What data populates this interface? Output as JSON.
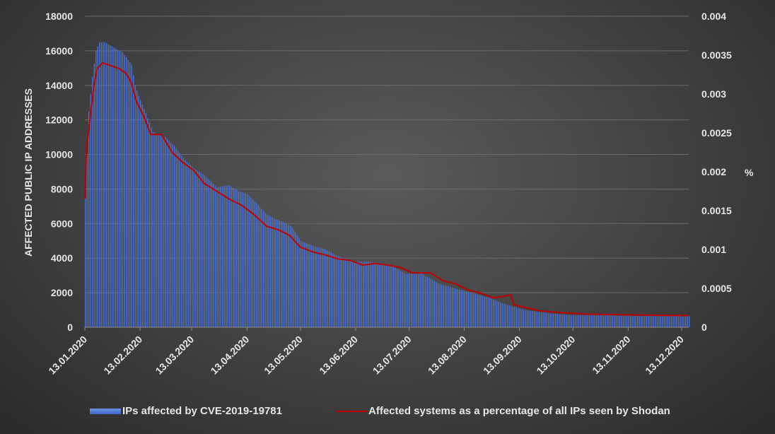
{
  "chart_data": {
    "type": "bar+line",
    "y_left_label": "AFFECTED PUBLIC IP ADDRESSES",
    "y_right_label": "%",
    "y_left_ticks": [
      "18000",
      "16000",
      "14000",
      "12000",
      "10000",
      "8000",
      "6000",
      "4000",
      "2000",
      "0"
    ],
    "y_right_ticks": [
      "0.004",
      "0.0035",
      "0.003",
      "0.0025",
      "0.002",
      "0.0015",
      "0.001",
      "0.0005",
      "0"
    ],
    "ylim_left": [
      0,
      18000
    ],
    "ylim_right": [
      0,
      0.004
    ],
    "x_start": "2020-01-13",
    "x_end": "2020-12-17",
    "x_tick_labels": [
      "13.01.2020",
      "13.02.2020",
      "13.03.2020",
      "13.04.2020",
      "13.05.2020",
      "13.06.2020",
      "13.07.2020",
      "13.08.2020",
      "13.09.2020",
      "13.10.2020",
      "13.11.2020",
      "13.12.2020"
    ],
    "x_tick_dates": [
      "2020-01-13",
      "2020-02-13",
      "2020-03-13",
      "2020-04-13",
      "2020-05-13",
      "2020-06-13",
      "2020-07-13",
      "2020-08-13",
      "2020-09-13",
      "2020-10-13",
      "2020-11-13",
      "2020-12-13"
    ],
    "gridlines": true,
    "legend_position": "bottom",
    "series": [
      {
        "name": "IPs affected by CVE-2019-19781",
        "type": "bar",
        "color": "#4a72d4",
        "points": [
          [
            "2020-01-13",
            7500
          ],
          [
            "2020-01-15",
            12500
          ],
          [
            "2020-01-17",
            14500
          ],
          [
            "2020-01-19",
            16000
          ],
          [
            "2020-01-21",
            16500
          ],
          [
            "2020-01-24",
            16500
          ],
          [
            "2020-01-29",
            16200
          ],
          [
            "2020-02-03",
            15900
          ],
          [
            "2020-02-08",
            15200
          ],
          [
            "2020-02-10",
            14000
          ],
          [
            "2020-02-12",
            13400
          ],
          [
            "2020-02-16",
            12400
          ],
          [
            "2020-02-20",
            11300
          ],
          [
            "2020-02-27",
            11000
          ],
          [
            "2020-03-03",
            10500
          ],
          [
            "2020-03-08",
            9800
          ],
          [
            "2020-03-14",
            9200
          ],
          [
            "2020-03-20",
            8800
          ],
          [
            "2020-03-27",
            8100
          ],
          [
            "2020-04-01",
            8200
          ],
          [
            "2020-04-03",
            8200
          ],
          [
            "2020-04-08",
            7900
          ],
          [
            "2020-04-13",
            7700
          ],
          [
            "2020-04-18",
            7200
          ],
          [
            "2020-04-23",
            6600
          ],
          [
            "2020-04-28",
            6300
          ],
          [
            "2020-05-03",
            6100
          ],
          [
            "2020-05-08",
            5800
          ],
          [
            "2020-05-13",
            5000
          ],
          [
            "2020-05-20",
            4700
          ],
          [
            "2020-05-27",
            4500
          ],
          [
            "2020-06-01",
            4200
          ],
          [
            "2020-06-06",
            4000
          ],
          [
            "2020-06-13",
            3800
          ],
          [
            "2020-06-20",
            3800
          ],
          [
            "2020-06-27",
            3700
          ],
          [
            "2020-07-04",
            3500
          ],
          [
            "2020-07-11",
            3100
          ],
          [
            "2020-07-20",
            3100
          ],
          [
            "2020-07-25",
            2800
          ],
          [
            "2020-07-30",
            2500
          ],
          [
            "2020-08-06",
            2300
          ],
          [
            "2020-08-13",
            2100
          ],
          [
            "2020-08-20",
            1900
          ],
          [
            "2020-08-27",
            1700
          ],
          [
            "2020-09-03",
            1400
          ],
          [
            "2020-09-09",
            1200
          ],
          [
            "2020-09-16",
            1000
          ],
          [
            "2020-09-23",
            900
          ],
          [
            "2020-10-01",
            800
          ],
          [
            "2020-10-13",
            700
          ],
          [
            "2020-11-01",
            700
          ],
          [
            "2020-11-20",
            650
          ],
          [
            "2020-12-17",
            650
          ]
        ]
      },
      {
        "name": "Affected systems as a percentage of all IPs seen by Shodan",
        "type": "line",
        "axis": "right",
        "color": "#c00000",
        "points": [
          [
            "2020-01-13",
            0.00165
          ],
          [
            "2020-01-14",
            0.0023
          ],
          [
            "2020-01-16",
            0.0027
          ],
          [
            "2020-01-18",
            0.0031
          ],
          [
            "2020-01-20",
            0.00333
          ],
          [
            "2020-01-23",
            0.0034
          ],
          [
            "2020-01-27",
            0.00337
          ],
          [
            "2020-02-01",
            0.00333
          ],
          [
            "2020-02-05",
            0.00327
          ],
          [
            "2020-02-08",
            0.00315
          ],
          [
            "2020-02-11",
            0.0029
          ],
          [
            "2020-02-15",
            0.00272
          ],
          [
            "2020-02-19",
            0.00248
          ],
          [
            "2020-02-25",
            0.00248
          ],
          [
            "2020-03-02",
            0.00225
          ],
          [
            "2020-03-08",
            0.00212
          ],
          [
            "2020-03-14",
            0.00202
          ],
          [
            "2020-03-20",
            0.00185
          ],
          [
            "2020-03-27",
            0.00175
          ],
          [
            "2020-04-03",
            0.00165
          ],
          [
            "2020-04-10",
            0.00157
          ],
          [
            "2020-04-17",
            0.00145
          ],
          [
            "2020-04-24",
            0.0013
          ],
          [
            "2020-05-01",
            0.00125
          ],
          [
            "2020-05-07",
            0.00118
          ],
          [
            "2020-05-13",
            0.00103
          ],
          [
            "2020-05-20",
            0.00097
          ],
          [
            "2020-05-27",
            0.00093
          ],
          [
            "2020-06-03",
            0.00088
          ],
          [
            "2020-06-10",
            0.00086
          ],
          [
            "2020-06-17",
            0.0008
          ],
          [
            "2020-06-24",
            0.00082
          ],
          [
            "2020-07-01",
            0.0008
          ],
          [
            "2020-07-08",
            0.00077
          ],
          [
            "2020-07-15",
            0.0007
          ],
          [
            "2020-07-25",
            0.0007
          ],
          [
            "2020-08-01",
            0.0006
          ],
          [
            "2020-08-08",
            0.00056
          ],
          [
            "2020-08-15",
            0.00048
          ],
          [
            "2020-08-22",
            0.00044
          ],
          [
            "2020-08-29",
            0.00038
          ],
          [
            "2020-09-05",
            0.0004
          ],
          [
            "2020-09-08",
            0.00042
          ],
          [
            "2020-09-10",
            0.00029
          ],
          [
            "2020-09-17",
            0.00025
          ],
          [
            "2020-09-25",
            0.00021
          ],
          [
            "2020-10-05",
            0.00019
          ],
          [
            "2020-10-20",
            0.00017
          ],
          [
            "2020-11-10",
            0.00016
          ],
          [
            "2020-12-17",
            0.00015
          ]
        ]
      }
    ]
  }
}
